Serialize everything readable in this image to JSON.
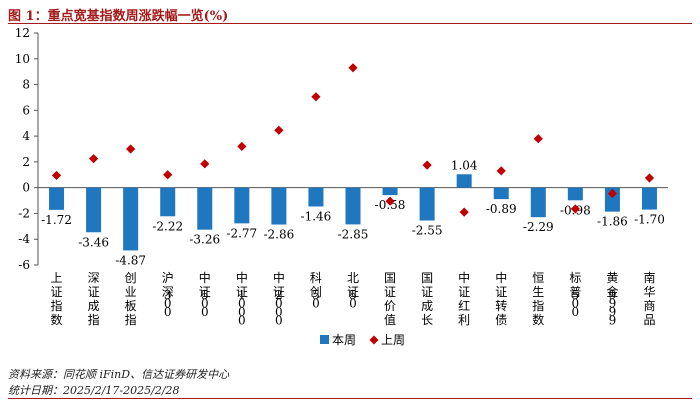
{
  "figure": {
    "title": "图 1：重点宽基指数周涨跌幅一览(%)",
    "source": "资料来源：同花顺 iFinD、信达证券研发中心",
    "date_range": "统计日期：2025/2/17-2025/2/28"
  },
  "colors": {
    "bar": "#1f77c0",
    "diamond": "#c00000",
    "title": "#a31a1a",
    "axis": "#555555"
  },
  "chart_data": {
    "type": "bar",
    "categories": [
      "上证指数",
      "深证成指",
      "创业板指",
      "沪深300",
      "中证500",
      "中证1000",
      "中证2000",
      "科创50",
      "北证50",
      "国证价值",
      "国证成长",
      "中证红利",
      "中证转债",
      "恒生指数",
      "标普500",
      "黄金9999",
      "南华商品"
    ],
    "series": [
      {
        "name": "本周",
        "type": "bar",
        "values": [
          -1.72,
          -3.46,
          -4.87,
          -2.22,
          -3.26,
          -2.77,
          -2.86,
          -1.46,
          -2.85,
          -0.58,
          -2.55,
          1.04,
          -0.89,
          -2.29,
          -0.98,
          -1.86,
          -1.7
        ]
      },
      {
        "name": "上周",
        "type": "scatter",
        "marker": "diamond",
        "values": [
          0.95,
          2.25,
          3.0,
          1.0,
          1.85,
          3.2,
          4.45,
          7.05,
          9.3,
          -1.05,
          1.75,
          -1.9,
          1.3,
          3.8,
          -1.65,
          -0.45,
          0.75
        ]
      }
    ],
    "xlabel": "",
    "ylabel": "",
    "ylim": [
      -6,
      12
    ],
    "yticks": [
      -6,
      -4,
      -2,
      0,
      2,
      4,
      6,
      8,
      10,
      12
    ],
    "data_labels": [
      "-1.72",
      "-3.46",
      "-4.87",
      "-2.22",
      "-3.26",
      "-2.77",
      "-2.86",
      "-1.46",
      "-2.85",
      "-0.58",
      "-2.55",
      "1.04",
      "-0.89",
      "-2.29",
      "-0.98",
      "-1.86",
      "-1.70"
    ],
    "legend": {
      "position": "bottom-center",
      "entries": [
        "本周",
        "上周"
      ]
    },
    "grid": false
  }
}
